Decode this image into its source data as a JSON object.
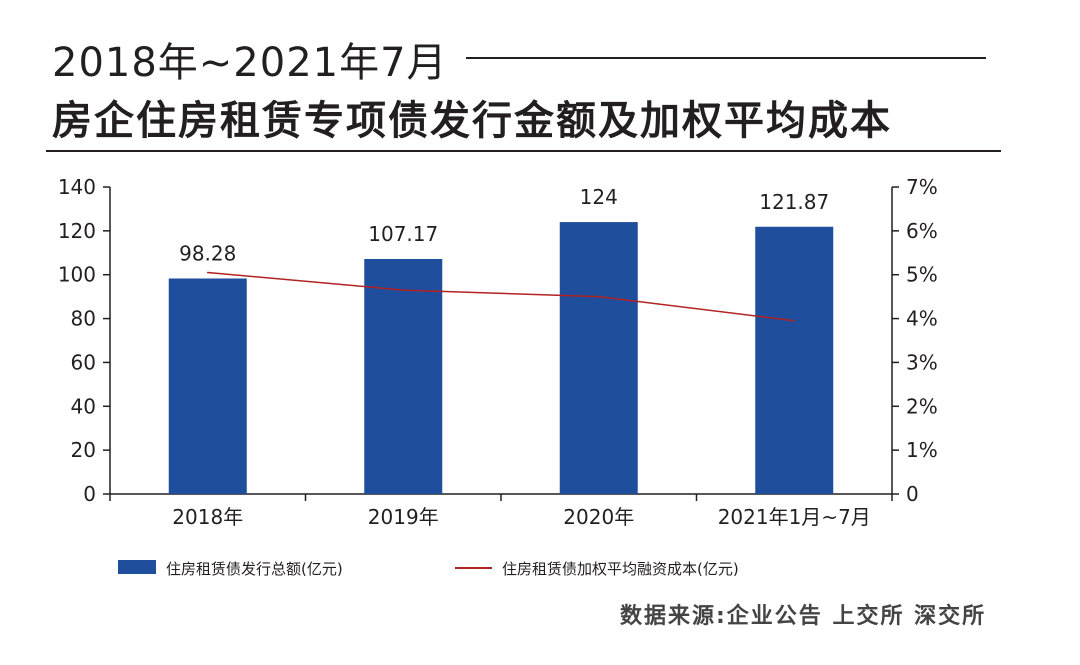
{
  "header": {
    "subtitle": "2018年~2021年7月",
    "title": "房企住房租赁专项债发行金额及加权平均成本"
  },
  "source": "数据来源:企业公告 上交所 深交所",
  "chart_data": {
    "type": "bar",
    "categories": [
      "2018年",
      "2019年",
      "2020年",
      "2021年1月~7月"
    ],
    "series": [
      {
        "name": "住房租赁债发行总额(亿元)",
        "type": "bar",
        "axis": "left",
        "color": "#1f4e9c",
        "values": [
          98.28,
          107.17,
          124,
          121.87
        ],
        "labels": [
          "98.28",
          "107.17",
          "124",
          "121.87"
        ]
      },
      {
        "name": "住房租赁债加权平均融资成本(亿元)",
        "type": "line",
        "axis": "right",
        "color": "#b22222",
        "values": [
          5.05,
          4.65,
          4.5,
          3.95
        ]
      }
    ],
    "y_left": {
      "min": 0,
      "max": 140,
      "ticks": [
        "0",
        "20",
        "40",
        "60",
        "80",
        "100",
        "120",
        "140"
      ]
    },
    "y_right": {
      "min": 0,
      "max": 7,
      "ticks": [
        "0",
        "1%",
        "2%",
        "3%",
        "4%",
        "5%",
        "6%",
        "7%"
      ]
    },
    "grid": false,
    "legend": "bottom"
  }
}
